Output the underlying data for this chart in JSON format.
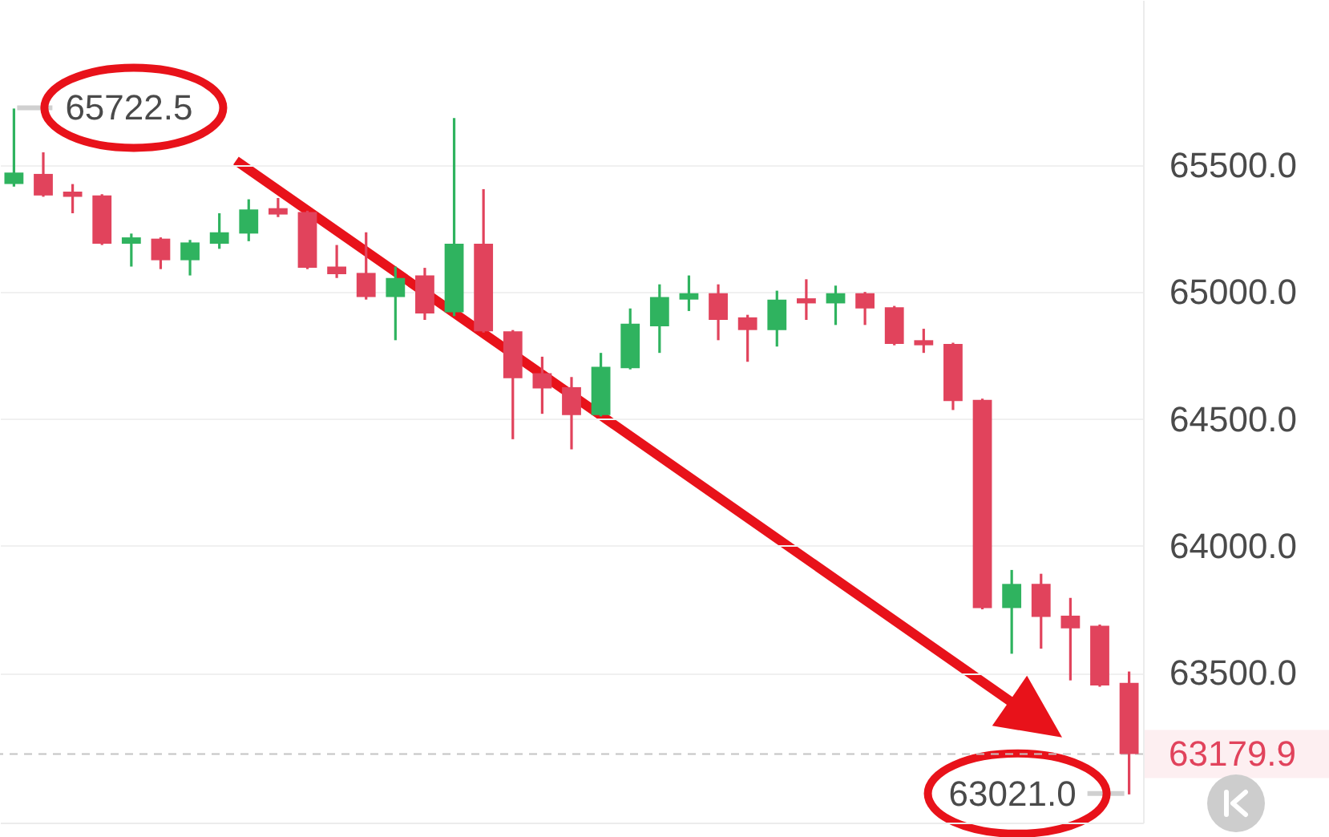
{
  "chart_data": {
    "type": "candlestick",
    "categories": [
      null,
      null,
      null,
      null,
      null,
      null,
      null,
      null,
      null,
      null,
      null,
      null,
      null,
      null,
      null,
      null,
      null,
      null,
      null,
      null,
      null,
      null,
      null,
      null,
      null,
      null,
      null,
      null,
      null,
      null,
      null,
      null,
      null,
      null,
      null,
      null,
      null,
      null,
      null
    ],
    "ohlc": [
      [
        65425,
        65722.5,
        65415,
        65470
      ],
      [
        65465,
        65550,
        65375,
        65380
      ],
      [
        65395,
        65425,
        65310,
        65375
      ],
      [
        65380,
        65385,
        65185,
        65190
      ],
      [
        65190,
        65230,
        65100,
        65215
      ],
      [
        65210,
        65215,
        65090,
        65125
      ],
      [
        65125,
        65205,
        65065,
        65195
      ],
      [
        65190,
        65310,
        65170,
        65235
      ],
      [
        65230,
        65365,
        65200,
        65325
      ],
      [
        65330,
        65370,
        65295,
        65305
      ],
      [
        65315,
        65320,
        65090,
        65095
      ],
      [
        65100,
        65185,
        65055,
        65070
      ],
      [
        65075,
        65235,
        64970,
        64980
      ],
      [
        64980,
        65100,
        64810,
        65055
      ],
      [
        65065,
        65095,
        64890,
        64915
      ],
      [
        64920,
        65685,
        64905,
        65190
      ],
      [
        65190,
        65405,
        64840,
        64845
      ],
      [
        64845,
        64850,
        64420,
        64660
      ],
      [
        64680,
        64745,
        64520,
        64620
      ],
      [
        64625,
        64665,
        64380,
        64515
      ],
      [
        64515,
        64760,
        64510,
        64705
      ],
      [
        64700,
        64935,
        64695,
        64875
      ],
      [
        64865,
        65030,
        64760,
        64980
      ],
      [
        64970,
        65065,
        64925,
        64995
      ],
      [
        64995,
        65030,
        64810,
        64890
      ],
      [
        64900,
        64910,
        64725,
        64850
      ],
      [
        64850,
        65005,
        64785,
        64970
      ],
      [
        64975,
        65050,
        64890,
        64955
      ],
      [
        64955,
        65025,
        64870,
        64995
      ],
      [
        64995,
        65000,
        64870,
        64935
      ],
      [
        64940,
        64945,
        64790,
        64795
      ],
      [
        64810,
        64855,
        64760,
        64790
      ],
      [
        64795,
        64800,
        64535,
        64570
      ],
      [
        64575,
        64580,
        63750,
        63755
      ],
      [
        63755,
        63905,
        63575,
        63850
      ],
      [
        63850,
        63890,
        63595,
        63720
      ],
      [
        63725,
        63795,
        63470,
        63675
      ],
      [
        63685,
        63690,
        63445,
        63450
      ],
      [
        63460,
        63505,
        63021.0,
        63179.9
      ]
    ],
    "colors": [
      "#2fb35f",
      "#e1435c",
      "#e1435c",
      "#e1435c",
      "#2fb35f",
      "#e1435c",
      "#2fb35f",
      "#2fb35f",
      "#2fb35f",
      "#e1435c",
      "#e1435c",
      "#e1435c",
      "#e1435c",
      "#2fb35f",
      "#e1435c",
      "#2fb35f",
      "#e1435c",
      "#e1435c",
      "#e1435c",
      "#e1435c",
      "#2fb35f",
      "#2fb35f",
      "#2fb35f",
      "#2fb35f",
      "#e1435c",
      "#e1435c",
      "#2fb35f",
      "#e1435c",
      "#2fb35f",
      "#e1435c",
      "#e1435c",
      "#e1435c",
      "#e1435c",
      "#e1435c",
      "#2fb35f",
      "#e1435c",
      "#e1435c",
      "#e1435c",
      "#e1435c"
    ],
    "ylim": [
      62910,
      66150
    ],
    "yticks": [
      {
        "value": 63500,
        "label": "63500.0"
      },
      {
        "value": 64000,
        "label": "64000.0"
      },
      {
        "value": 64500,
        "label": "64500.0"
      },
      {
        "value": 65000,
        "label": "65000.0"
      },
      {
        "value": 65500,
        "label": "65500.0"
      }
    ],
    "grid": "y",
    "tick_labels": "y",
    "ref_lines": [
      {
        "axis": "y",
        "value": 63179.9,
        "label": "63179.9",
        "line_style": "dashed"
      }
    ],
    "annotations": [
      "65722.5",
      "63021.0"
    ]
  }
}
